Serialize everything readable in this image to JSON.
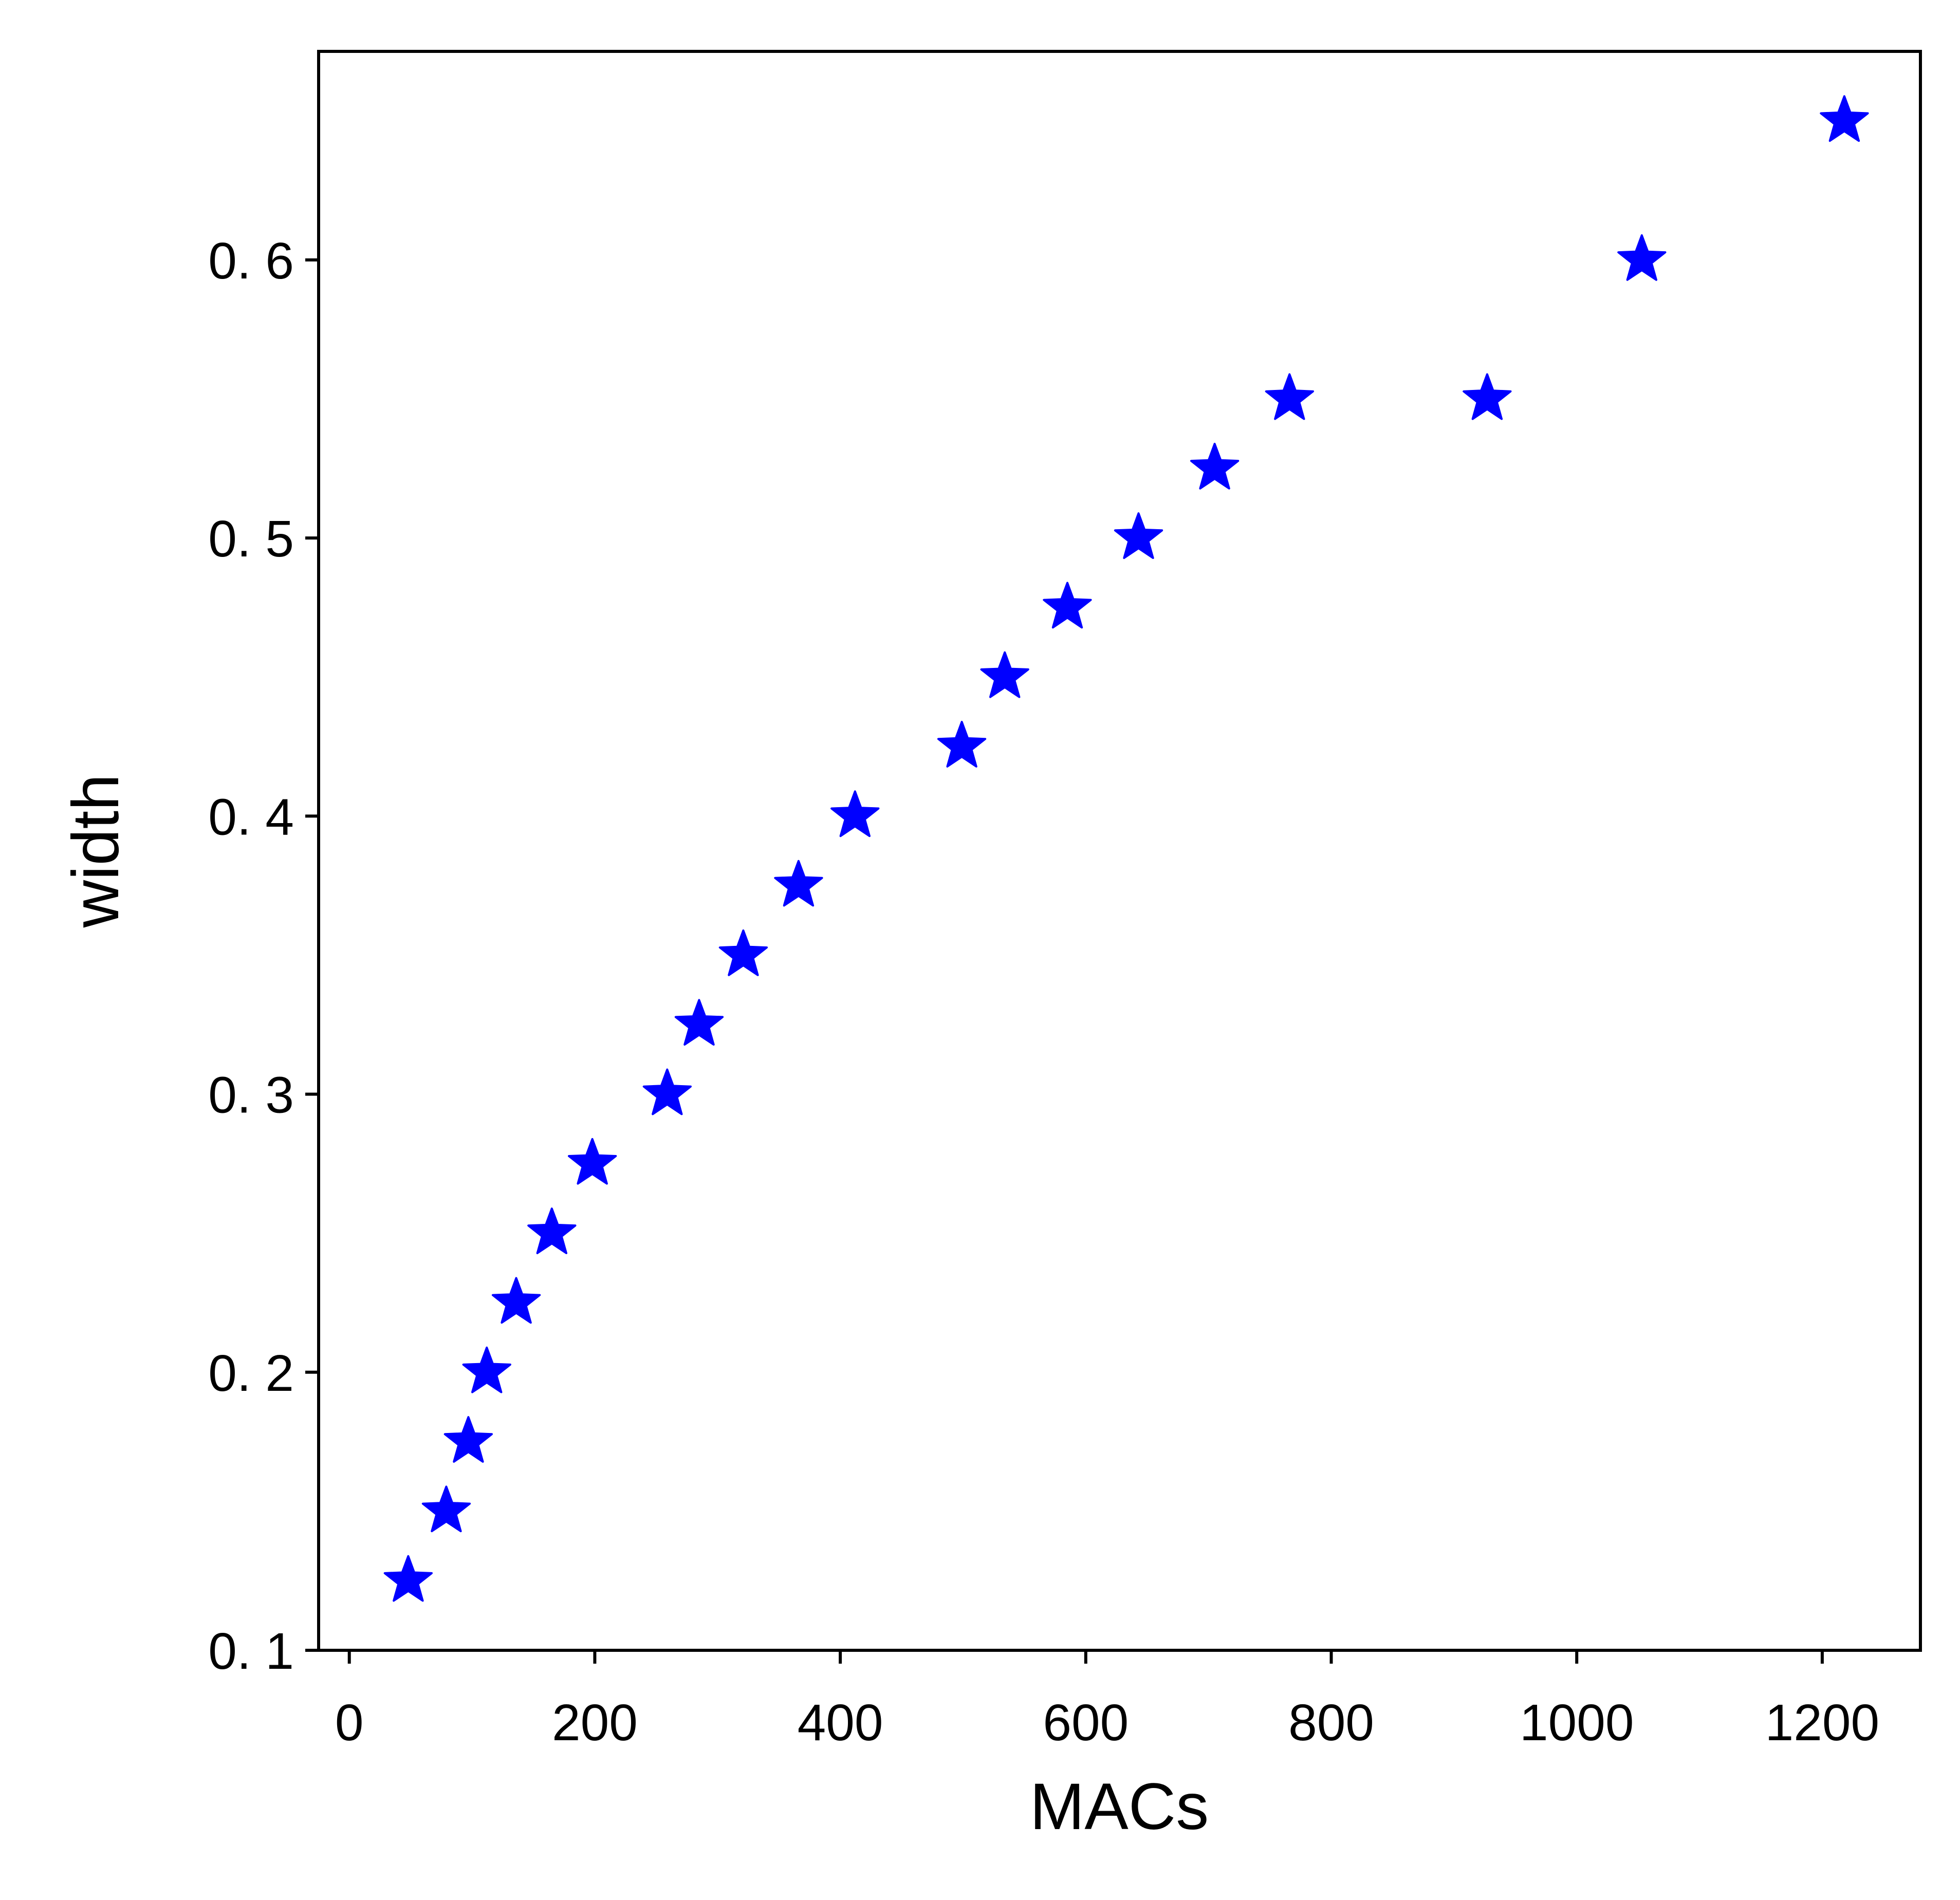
{
  "chart_data": {
    "type": "scatter",
    "title": "",
    "xlabel": "MACs",
    "ylabel": "width",
    "xlim": [
      -25,
      1280
    ],
    "ylim": [
      0.1,
      0.675
    ],
    "x_ticks": [
      0,
      200,
      400,
      600,
      800,
      1000,
      1200
    ],
    "x_tick_labels": [
      "0",
      "200",
      "400",
      "600",
      "800",
      "1000",
      "1200"
    ],
    "y_ticks": [
      0.1,
      0.2,
      0.3,
      0.4,
      0.5,
      0.6
    ],
    "y_tick_labels": [
      "0. 1",
      "0. 2",
      "0. 3",
      "0. 4",
      "0. 5",
      "0. 6"
    ],
    "grid": false,
    "legend": "none",
    "marker": "star",
    "series": [
      {
        "color": "#0000ff",
        "points": [
          {
            "x": 48,
            "y": 0.125
          },
          {
            "x": 79,
            "y": 0.15
          },
          {
            "x": 97,
            "y": 0.175
          },
          {
            "x": 112,
            "y": 0.2
          },
          {
            "x": 136,
            "y": 0.225
          },
          {
            "x": 165,
            "y": 0.25
          },
          {
            "x": 198,
            "y": 0.275
          },
          {
            "x": 259,
            "y": 0.3
          },
          {
            "x": 285,
            "y": 0.325
          },
          {
            "x": 321,
            "y": 0.35
          },
          {
            "x": 366,
            "y": 0.375
          },
          {
            "x": 412,
            "y": 0.4
          },
          {
            "x": 499,
            "y": 0.425
          },
          {
            "x": 534,
            "y": 0.45
          },
          {
            "x": 585,
            "y": 0.475
          },
          {
            "x": 643,
            "y": 0.5
          },
          {
            "x": 705,
            "y": 0.525
          },
          {
            "x": 766,
            "y": 0.55
          },
          {
            "x": 927,
            "y": 0.55
          },
          {
            "x": 1053,
            "y": 0.6
          },
          {
            "x": 1218,
            "y": 0.65
          }
        ]
      }
    ]
  }
}
